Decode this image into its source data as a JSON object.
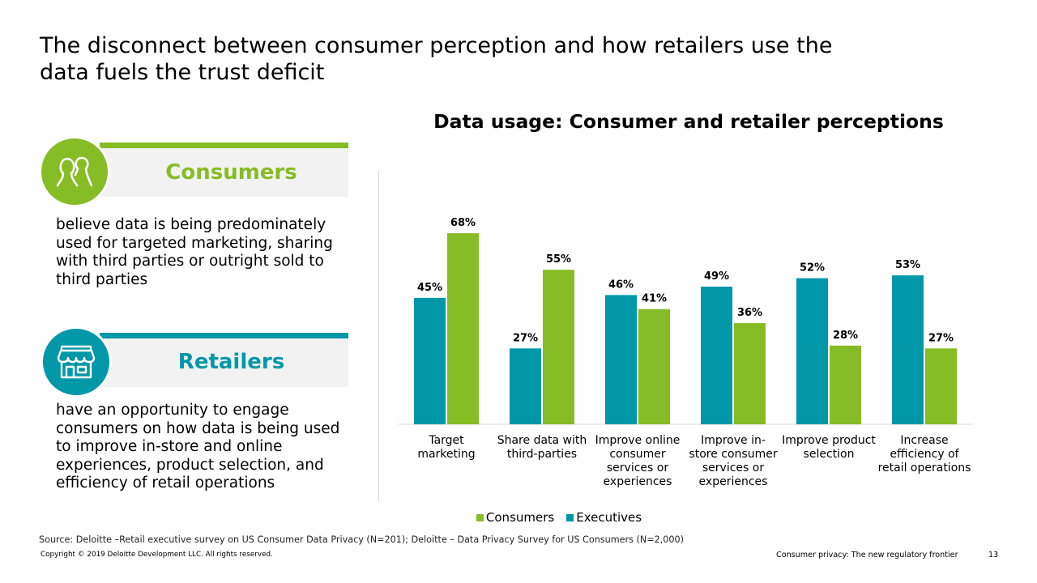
{
  "slide": {
    "title": "The disconnect between consumer perception and how retailers use the data fuels the trust deficit"
  },
  "cards": [
    {
      "title": "Consumers",
      "icon": "people-icon",
      "color": "#86bc25",
      "text": "believe data is being predominately used for targeted marketing, sharing with third parties or outright sold to third parties"
    },
    {
      "title": "Retailers",
      "icon": "storefront-icon",
      "color": "#0097a9",
      "text": "have an opportunity to engage consumers on how data is being used to improve in-store and online experiences, product selection, and efficiency of retail operations"
    }
  ],
  "chart_data": {
    "type": "bar",
    "title": "Data usage: Consumer and retailer perceptions",
    "categories": [
      [
        "Target",
        "marketing"
      ],
      [
        "Share data with",
        "third-parties"
      ],
      [
        "Improve online",
        "consumer",
        "services or",
        "experiences"
      ],
      [
        "Improve in-",
        "store consumer",
        "services or",
        "experiences"
      ],
      [
        "Improve product",
        "selection"
      ],
      [
        "Increase",
        "efficiency of",
        "retail operations"
      ]
    ],
    "series": [
      {
        "name": "Executives",
        "color": "#0097a9",
        "values": [
          45,
          27,
          46,
          49,
          52,
          53
        ]
      },
      {
        "name": "Consumers",
        "color": "#86bc25",
        "values": [
          68,
          55,
          41,
          36,
          28,
          27
        ]
      }
    ],
    "value_suffix": "%",
    "ylim": [
      0,
      70
    ],
    "legend": {
      "position": "bottom",
      "order": [
        "Consumers",
        "Executives"
      ]
    },
    "grid": false
  },
  "footer": {
    "source": "Source: Deloitte –Retail executive survey on US Consumer Data Privacy (N=201); Deloitte – Data Privacy Survey for US Consumers (N=2,000)",
    "copyright": "Copyright © 2019 Deloitte Development LLC. All rights reserved.",
    "section": "Consumer privacy: The new regulatory frontier",
    "page_number": "13"
  }
}
